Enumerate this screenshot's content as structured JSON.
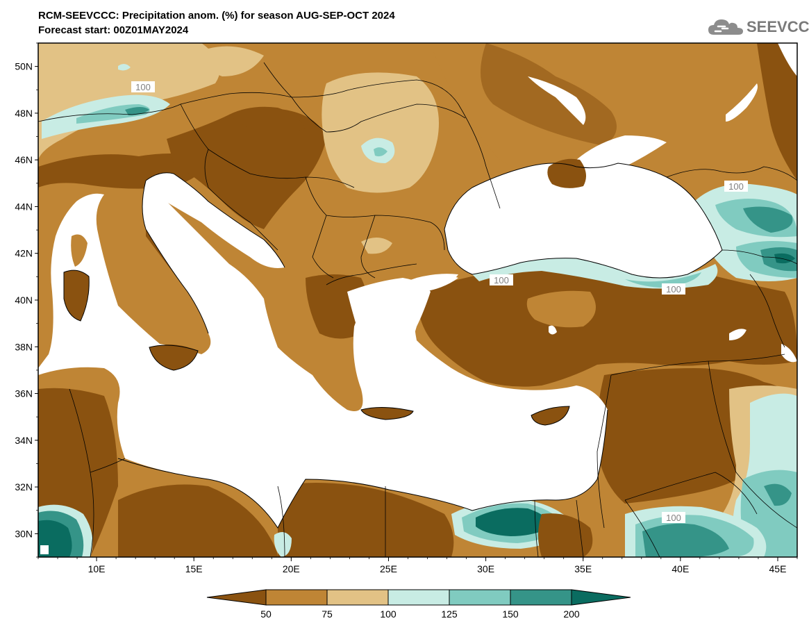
{
  "header": {
    "title": "RCM-SEEVCCC: Precipitation anom. (%) for season AUG-SEP-OCT 2024",
    "subtitle": "Forecast start: 00Z01MAY2024",
    "logo_text": "SEEVCCC"
  },
  "map": {
    "lon_range": [
      7,
      46
    ],
    "lat_range": [
      29,
      51
    ],
    "lat_labels": [
      "50N",
      "48N",
      "46N",
      "44N",
      "42N",
      "40N",
      "38N",
      "36N",
      "34N",
      "32N",
      "30N"
    ],
    "lon_labels": [
      "10E",
      "15E",
      "20E",
      "25E",
      "30E",
      "35E",
      "40E",
      "45E"
    ],
    "contour_labels": [
      "100",
      "100",
      "100",
      "100",
      "100"
    ]
  },
  "legend": {
    "labels": [
      "50",
      "75",
      "100",
      "125",
      "150",
      "200"
    ],
    "colors": [
      "#8a5210",
      "#bf8535",
      "#e2c285",
      "#c8ece4",
      "#80cbc0",
      "#359488",
      "#0a6c60"
    ]
  }
}
